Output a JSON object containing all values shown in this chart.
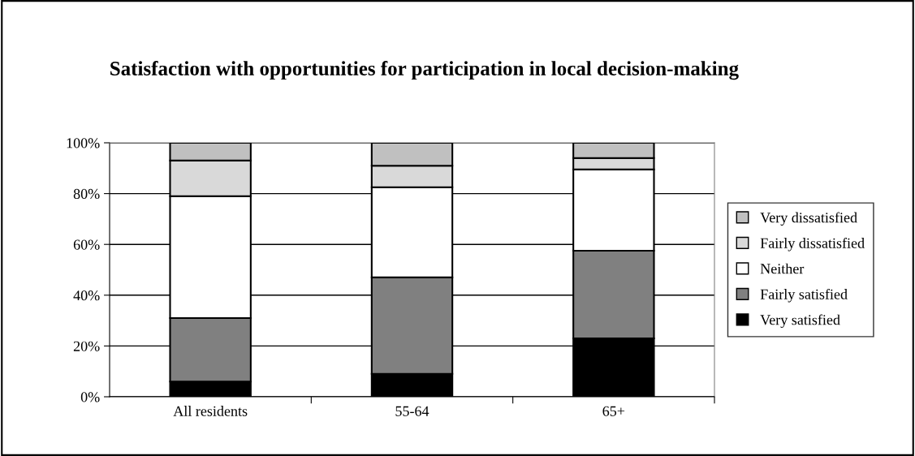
{
  "chart_data": {
    "type": "bar",
    "title": "Satisfaction with opportunities for participation in local decision-making",
    "categories": [
      "All residents",
      "55-64",
      "65+"
    ],
    "stacked": true,
    "series": [
      {
        "name": "Very satisfied",
        "color": "#000000",
        "values": [
          6,
          9,
          23
        ]
      },
      {
        "name": "Fairly satisfied",
        "color": "#808080",
        "values": [
          25,
          38,
          34.5
        ]
      },
      {
        "name": "Neither",
        "color": "#ffffff",
        "values": [
          48,
          35.5,
          32
        ]
      },
      {
        "name": "Fairly dissatisfied",
        "color": "#d9d9d9",
        "values": [
          14,
          8.5,
          4.5
        ]
      },
      {
        "name": "Very dissatisfied",
        "color": "#c0c0c0",
        "values": [
          7,
          9,
          6
        ]
      }
    ],
    "ylim": [
      0,
      100
    ],
    "yticks": [
      {
        "value": 0,
        "label": "0%"
      },
      {
        "value": 20,
        "label": "20%"
      },
      {
        "value": 40,
        "label": "40%"
      },
      {
        "value": 60,
        "label": "60%"
      },
      {
        "value": 80,
        "label": "80%"
      },
      {
        "value": 100,
        "label": "100%"
      }
    ],
    "grid": "y",
    "legend": "right"
  }
}
